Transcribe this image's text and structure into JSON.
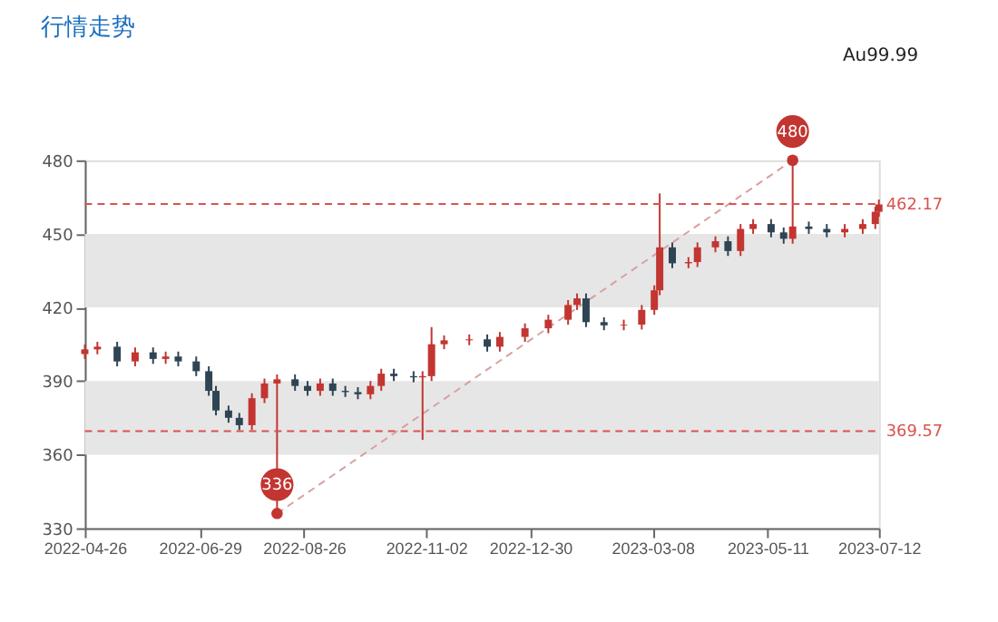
{
  "chart_data": {
    "type": "candlestick",
    "title": "行情走势",
    "x": [
      "2022-04-26",
      "2022-05-03",
      "2022-05-14",
      "2022-05-24",
      "2022-06-03",
      "2022-06-10",
      "2022-06-17",
      "2022-06-27",
      "2022-07-04",
      "2022-07-08",
      "2022-07-15",
      "2022-07-21",
      "2022-07-28",
      "2022-08-04",
      "2022-08-11",
      "2022-08-21",
      "2022-08-28",
      "2022-09-04",
      "2022-09-11",
      "2022-09-18",
      "2022-09-25",
      "2022-10-02",
      "2022-10-08",
      "2022-10-15",
      "2022-10-26",
      "2022-10-31",
      "2022-11-05",
      "2022-11-12",
      "2022-11-26",
      "2022-12-06",
      "2022-12-13",
      "2022-12-27",
      "2023-01-09",
      "2023-01-20",
      "2023-01-25",
      "2023-01-30",
      "2023-02-09",
      "2023-02-20",
      "2023-03-02",
      "2023-03-09",
      "2023-03-12",
      "2023-03-19",
      "2023-03-28",
      "2023-04-02",
      "2023-04-12",
      "2023-04-19",
      "2023-04-26",
      "2023-05-03",
      "2023-05-13",
      "2023-05-20",
      "2023-05-25",
      "2023-06-03",
      "2023-06-13",
      "2023-06-23",
      "2023-07-03",
      "2023-07-10",
      "2023-07-12"
    ],
    "ohlc": [
      [
        401,
        404.9,
        399,
        402.9
      ],
      [
        402.9,
        406,
        400.9,
        404
      ],
      [
        404,
        406,
        396,
        398
      ],
      [
        398,
        403.7,
        396,
        401.7
      ],
      [
        401.7,
        403.7,
        397,
        399
      ],
      [
        399,
        402,
        397,
        400
      ],
      [
        400,
        402,
        396,
        398
      ],
      [
        398,
        400,
        392,
        394
      ],
      [
        394,
        396,
        384,
        386
      ],
      [
        386,
        388,
        376,
        378
      ],
      [
        378,
        380,
        373,
        375
      ],
      [
        375,
        377,
        370,
        372
      ],
      [
        372,
        385,
        370,
        383
      ],
      [
        383,
        391,
        381,
        389
      ],
      [
        389,
        392.7,
        336,
        390.7
      ],
      [
        390.7,
        392.7,
        386,
        388
      ],
      [
        388,
        390,
        384,
        386
      ],
      [
        386,
        391,
        384,
        389
      ],
      [
        389,
        391,
        384,
        386
      ],
      [
        386,
        388,
        383.5,
        385.5
      ],
      [
        385.5,
        387.5,
        382.6,
        384.6
      ],
      [
        384.6,
        390,
        382.6,
        388
      ],
      [
        388,
        395,
        386,
        393
      ],
      [
        393,
        395,
        390,
        392
      ],
      [
        392,
        394,
        389.5,
        391.5
      ],
      [
        391.5,
        394,
        366,
        392
      ],
      [
        392,
        412,
        390,
        405
      ],
      [
        405,
        408.6,
        403,
        406.6
      ],
      [
        406.6,
        409,
        404.6,
        407
      ],
      [
        407,
        409,
        402,
        404
      ],
      [
        404,
        410,
        402,
        408
      ],
      [
        408,
        413.5,
        406,
        411.5
      ],
      [
        411.5,
        417,
        409.5,
        415
      ],
      [
        415,
        423,
        413,
        421
      ],
      [
        421,
        425.7,
        419,
        423.7
      ],
      [
        423.7,
        425.7,
        412,
        414
      ],
      [
        414,
        416,
        410.7,
        412.7
      ],
      [
        412.7,
        415,
        410.7,
        413
      ],
      [
        413,
        421,
        411,
        419
      ],
      [
        419,
        429,
        417,
        427
      ],
      [
        427,
        466.5,
        425,
        444.5
      ],
      [
        444.5,
        446.5,
        436,
        438
      ],
      [
        438,
        440.5,
        436,
        438.5
      ],
      [
        438.5,
        446.5,
        436.5,
        444.5
      ],
      [
        444.5,
        449,
        442.5,
        447
      ],
      [
        447,
        449,
        441,
        443
      ],
      [
        443,
        454,
        441,
        452
      ],
      [
        452,
        456,
        450,
        454
      ],
      [
        454,
        456,
        448.6,
        450.6
      ],
      [
        450.6,
        452.6,
        446,
        448
      ],
      [
        448,
        480,
        446,
        453
      ],
      [
        453,
        455,
        450,
        452
      ],
      [
        452,
        454,
        448.6,
        450.6
      ],
      [
        450.6,
        454,
        448.6,
        452
      ],
      [
        452,
        456,
        450,
        454
      ],
      [
        454,
        461,
        452,
        459
      ],
      [
        459,
        464,
        457,
        462
      ]
    ],
    "colors": [
      "#c23531",
      "#c23531",
      "#2f4554",
      "#c23531",
      "#2f4554",
      "#c23531",
      "#2f4554",
      "#2f4554",
      "#2f4554",
      "#2f4554",
      "#2f4554",
      "#2f4554",
      "#c23531",
      "#c23531",
      "#c23531",
      "#2f4554",
      "#2f4554",
      "#c23531",
      "#2f4554",
      "#2f4554",
      "#2f4554",
      "#c23531",
      "#c23531",
      "#2f4554",
      "#2f4554",
      "#c23531",
      "#c23531",
      "#c23531",
      "#c23531",
      "#2f4554",
      "#c23531",
      "#c23531",
      "#c23531",
      "#c23531",
      "#c23531",
      "#2f4554",
      "#2f4554",
      "#c23531",
      "#c23531",
      "#c23531",
      "#c23531",
      "#2f4554",
      "#c23531",
      "#c23531",
      "#c23531",
      "#2f4554",
      "#c23531",
      "#c23531",
      "#2f4554",
      "#2f4554",
      "#c23531",
      "#2f4554",
      "#2f4554",
      "#c23531",
      "#c23531",
      "#c23531",
      "#c23531"
    ],
    "series": [
      {
        "type": "line",
        "x": [
          "2022-08-11",
          "2023-05-25"
        ],
        "values": [
          336,
          480
        ],
        "color": "#d9a0a0",
        "line_style": "dashed",
        "marker": "circle"
      }
    ],
    "xlim": [
      "2022-04-26",
      "2023-07-12"
    ],
    "xticks": [
      "2022-04-26",
      "2022-06-29",
      "2022-08-26",
      "2022-11-02",
      "2022-12-30",
      "2023-03-08",
      "2023-05-11",
      "2023-07-12"
    ],
    "ylim": [
      330,
      480
    ],
    "yticks": [
      330,
      360,
      390,
      420,
      450,
      480
    ],
    "ref_lines": [
      {
        "axis": "y",
        "value": 462.17,
        "label": "462.17",
        "color": "#d9534f",
        "line_style": "dashed"
      },
      {
        "axis": "y",
        "value": 369.57,
        "label": "369.57",
        "color": "#d9534f",
        "line_style": "dashed"
      }
    ],
    "bands": [
      {
        "axis": "y",
        "from": 360,
        "to": 390,
        "label": null,
        "color": "#e6e6e6"
      },
      {
        "axis": "y",
        "from": 420,
        "to": 450,
        "label": null,
        "color": "#e6e6e6"
      }
    ],
    "annotations": [
      {
        "text": "336",
        "x": "2022-08-11",
        "y": 336
      },
      {
        "text": "480",
        "x": "2023-05-25",
        "y": 480
      },
      "Au99.99"
    ],
    "grid": false
  }
}
